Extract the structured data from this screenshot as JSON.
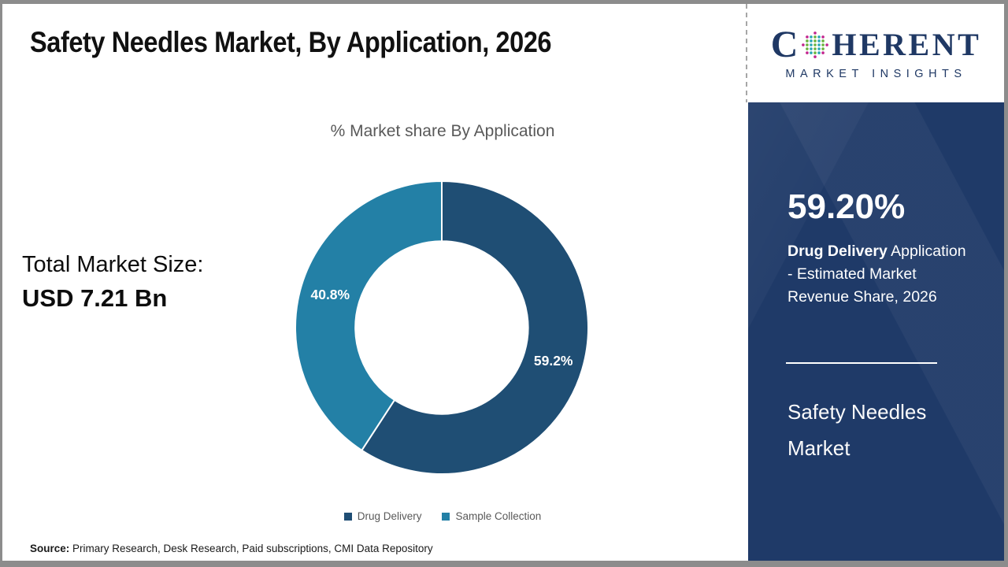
{
  "header": {
    "title": "Safety Needles Market, By Application, 2026"
  },
  "logo": {
    "brand_pre": "C",
    "brand_post": "HERENT",
    "brand_sub": "MARKET INSIGHTS",
    "navy": "#1F3864",
    "globe_colors": {
      "outer": "#C2268E",
      "mid": "#2AA7B5",
      "inner": "#6CB33F"
    }
  },
  "left_panel": {
    "total_label": "Total Market Size:",
    "total_value": "USD 7.21 Bn"
  },
  "sidebar": {
    "stat_value": "59.20%",
    "stat_bold": "Drug Delivery",
    "stat_rest": " Application\n- Estimated Market\nRevenue Share, 2026",
    "market_name_line1": "Safety Needles",
    "market_name_line2": "Market",
    "background": "#1F3A68"
  },
  "footer": {
    "source_label": "Source:",
    "source_text": " Primary Research, Desk Research, Paid subscriptions, CMI Data Repository"
  },
  "chart_data": {
    "type": "pie",
    "donut": true,
    "donut_hole": 0.59,
    "start_angle": "top, clockwise",
    "title": "% Market share By Application",
    "categories": [
      "Drug Delivery",
      "Sample Collection"
    ],
    "values": [
      59.2,
      40.8
    ],
    "labels": [
      "59.2%",
      "40.8%"
    ],
    "colors": [
      "#1F4E74",
      "#2380A6"
    ],
    "label_color": "#FFFFFF",
    "legend_position": "bottom",
    "grid": false
  }
}
